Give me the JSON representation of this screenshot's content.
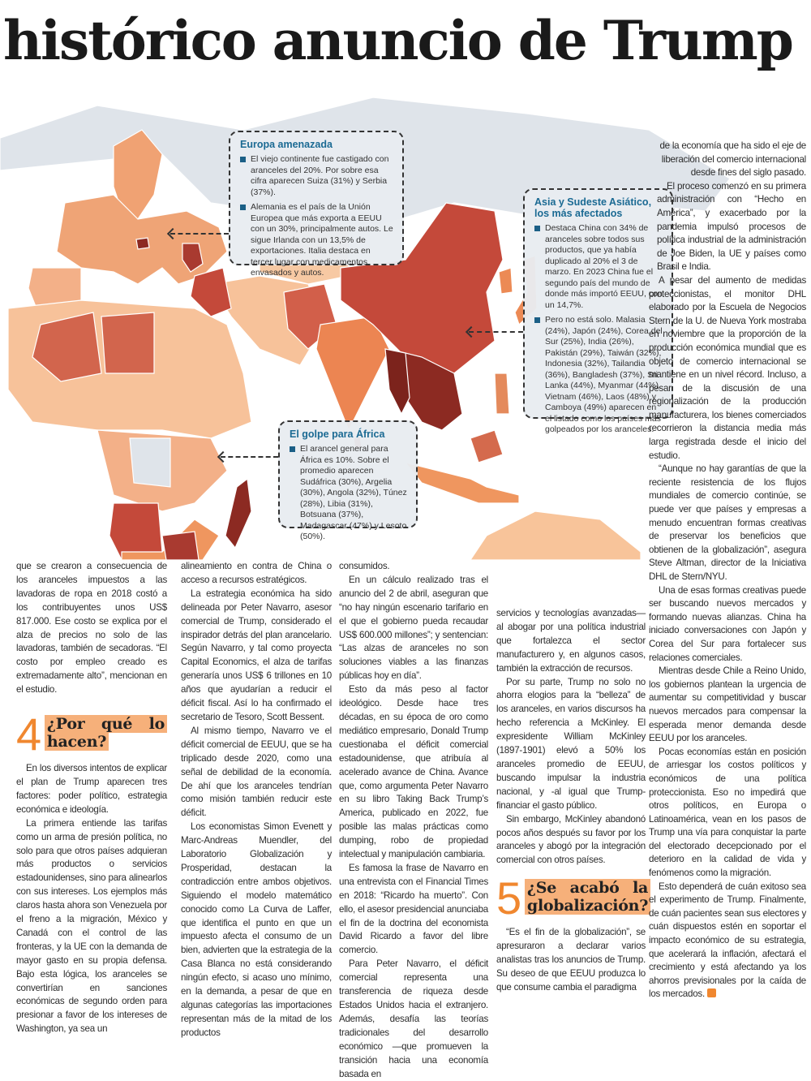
{
  "headline": "histórico anuncio de Trump",
  "colors": {
    "accent_orange": "#f0872f",
    "heading_highlight": "#f6b07a",
    "callout_title": "#1b6a93",
    "tariff_low": "#f9c9a0",
    "tariff_mid": "#ec8c5a",
    "tariff_high": "#c4493a",
    "tariff_max": "#8c2a22",
    "no_data_land": "#dfe4ea"
  },
  "callouts": {
    "europe": {
      "title": "Europa amenazada",
      "bullets": [
        "El viejo continente fue castigado con aranceles del 20%. Por sobre esa cifra aparecen Suiza (31%) y Serbia (37%).",
        "Alemania es el país de la Unión Europea que más exporta a EEUU con un 30%, principalmente autos. Le sigue Irlanda con un 13,5% de exportaciones. Italia destaca en tercer lugar con medicamentos envasados y autos."
      ]
    },
    "asia": {
      "title": "Asia y Sudeste Asiático, los más afectados",
      "bullets": [
        "Destaca China con 34% de aranceles sobre todos sus productos, que ya había duplicado al 20% el 3 de marzo. En 2023 China fue el segundo país del mundo de donde más importó EEUU, con un 14,7%.",
        "Pero no está solo. Malasia (24%), Japón (24%), Corea del Sur (25%), India (26%), Pakistán (29%), Taiwán (32%), Indonesia (32%), Tailandia (36%), Bangladesh (37%), Sri Lanka (44%), Myanmar (44%), Vietnam (46%), Laos (48%) y Camboya (49%) aparecen en el listado como los países más golpeados por los aranceles."
      ]
    },
    "africa": {
      "title": "El golpe para África",
      "bullets": [
        "El arancel general para África es 10%. Sobre el promedio aparecen Sudáfrica (30%), Argelia (30%), Angola (32%), Túnez (28%), Libia (31%), Botsuana (37%), Madagascar (47%) y Lesoto (50%)."
      ]
    }
  },
  "article": {
    "col1": {
      "paragraphs_before": [
        "que se crearon a consecuencia de los aranceles impuestos a las lavadoras de ropa en 2018 costó a los contribuyentes unos US$ 817.000. Ese costo se explica por el alza de precios no solo de las lavadoras, también de secadoras. “El costo por empleo creado es extremadamente alto”, mencionan en el estudio."
      ],
      "section": {
        "number": "4",
        "title": "¿Por qué lo hacen?"
      },
      "paragraphs_after": [
        "En los diversos intentos de explicar el plan de Trump aparecen tres factores: poder político, estrategia económica e ideología.",
        "La primera entiende las tarifas como un arma de presión política, no solo para que otros países adquieran más productos o servicios estadounidenses, sino para alinearlos con sus intereses. Los ejemplos más claros hasta ahora son Venezuela por el freno a la migración, México y Canadá con el control de las fronteras, y la UE con la demanda de mayor gasto en su propia defensa. Bajo esta lógica, los aranceles se convertirían en sanciones económicas de segundo orden para presionar a favor de los intereses de Washington, ya sea un"
      ]
    },
    "col2": {
      "paragraphs": [
        "alineamiento en contra de China o acceso a recursos estratégicos.",
        "La estrategia económica ha sido delineada por Peter Navarro, asesor comercial de Trump, considerado el inspirador detrás del plan arancelario. Según Navarro, y tal como proyecta Capital Economics, el alza de tarifas generaría unos US$ 6 trillones en 10 años que ayudarían a reducir el déficit fiscal. Así lo ha confirmado el secretario de Tesoro, Scott Bessent.",
        "Al mismo tiempo, Navarro ve el déficit comercial de EEUU, que se ha triplicado desde 2020, como una señal de debilidad de la economía. De ahí que los aranceles tendrían como misión también reducir este déficit.",
        "Los economistas Simon Evenett y Marc-Andreas Muendler, del Laboratorio Globalización y Prosperidad, destacan la contradicción entre ambos objetivos. Siguiendo el modelo matemático conocido como La Curva de Laffer, que identifica el punto en que un impuesto afecta el consumo de un bien, advierten que la estrategia de la Casa Blanca no está considerando ningún efecto, si acaso uno mínimo, en la demanda, a pesar de que en algunas categorías las importaciones representan más de la mitad de los productos"
      ]
    },
    "col3": {
      "paragraphs": [
        "consumidos.",
        "En un cálculo realizado tras el anuncio del 2 de abril, aseguran que “no hay ningún escenario tarifario en el que el gobierno pueda recaudar US$ 600.000 millones”; y sentencian: “Las alzas de aranceles no son soluciones viables a las finanzas públicas hoy en día”.",
        "Esto da más peso al factor ideológico. Desde hace tres décadas, en su época de oro como mediático empresario, Donald Trump cuestionaba el déficit comercial estadounidense, que atribuía al acelerado avance de China. Avance que, como argumenta Peter Navarro en su libro Taking Back Trump’s America, publicado en 2022, fue posible las malas prácticas como dumping, robo de propiedad intelectual y manipulación cambiaria.",
        "Es famosa la frase de Navarro en una entrevista con el Financial Times en 2018: “Ricardo ha muerto”. Con ello, el asesor presidencial anunciaba el fin de la doctrina del economista David Ricardo a favor del libre comercio.",
        "Para Peter Navarro, el déficit comercial representa una transferencia de riqueza desde Estados Unidos hacia el extranjero. Además, desafía las teorías tradicionales del desarrollo económico —que promueven la transición hacia una economía basada en"
      ]
    },
    "col4": {
      "paragraphs_before": [
        "servicios y tecnologías avanzadas— al abogar por una política industrial que fortalezca el sector manufacturero y, en algunos casos, también la extracción de recursos.",
        "Por su parte, Trump no solo no ahorra elogios para la “belleza” de los aranceles, en varios discursos ha hecho referencia a McKinley. El expresidente William McKinley (1897-1901) elevó a 50% los aranceles promedio de EEUU, buscando impulsar la industria nacional, y -al igual que Trump- financiar el gasto público.",
        "Sin embargo, McKinley abandonó pocos años después su favor por los aranceles y abogó por la integración comercial con otros países."
      ],
      "section": {
        "number": "5",
        "title": "¿Se acabó la globalización?"
      },
      "paragraphs_after": [
        "“Es el fin de la globalización”, se apresuraron a declarar varios analistas tras los anuncios de Trump. Su deseo de que EEUU produzca lo que consume cambia el paradigma"
      ]
    },
    "col5": {
      "paragraphs": [
        "de la economía que ha sido el eje de liberación del comercio internacional desde fines del siglo pasado.",
        "El proceso comenzó en su primera administración con “Hecho en América”, y exacerbado por la pandemia impulsó procesos de política industrial de la administración de Joe Biden, la UE y países como Brasil e India.",
        "A pesar del aumento de medidas proteccionistas, el monitor DHL elaborado por la Escuela de Negocios Stern de la U. de Nueva York mostraba en noviembre que la proporción de la producción económica mundial que es objeto de comercio internacional se mantiene en un nivel récord. Incluso, a pesar de la discusión de una regionalización de la producción manufacturera, los bienes comerciados recorrieron la distancia media más larga registrada desde el inicio del estudio.",
        "“Aunque no hay garantías de que la reciente resistencia de los flujos mundiales de comercio continúe, se puede ver que países y empresas a menudo encuentran formas creativas de preservar los beneficios que obtienen de la globalización”, asegura Steve Altman, director de la Iniciativa DHL de Stern/NYU.",
        "Una de esas formas creativas puede ser buscando nuevos mercados y formando nuevas alianzas. China ha iniciado conversaciones con Japón y Corea del Sur para fortalecer sus relaciones comerciales.",
        "Mientras desde Chile a Reino Unido, los gobiernos plantean la urgencia de aumentar su competitividad y buscar nuevos mercados para compensar la esperada menor demanda desde EEUU por los aranceles.",
        "Pocas economías están en posición de arriesgar los costos políticos y económicos de una política proteccionista. Eso no impedirá que otros políticos, en Europa o Latinoamérica, vean en los pasos de Trump una vía para conquistar la parte del electorado decepcionado por el deterioro en la calidad de vida y fenómenos como la migración.",
        "Esto dependerá de cuán exitoso sea el experimento de Trump. Finalmente, de cuán pacientes sean sus electores y cuán dispuestos estén en soportar el impacto económico de su estrategia, que acelerará la inflación, afectará el crecimiento y está afectando ya los ahorros previsionales por la caída de los mercados."
      ]
    }
  }
}
